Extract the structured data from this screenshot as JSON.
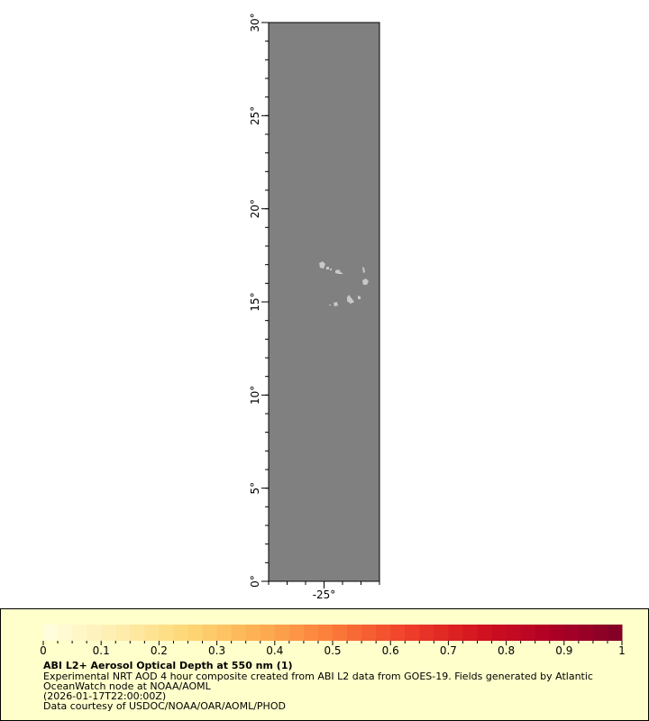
{
  "map": {
    "background_color": "#808080",
    "land_color": "#c8c8c8",
    "lat_range": [
      0,
      30
    ],
    "lon_range": [
      -28,
      -22
    ],
    "lat_tick_labels": [
      "0°",
      "5°",
      "10°",
      "15°",
      "20°",
      "25°",
      "30°"
    ],
    "lat_ticks": [
      0,
      5,
      10,
      15,
      20,
      25,
      30
    ],
    "lon_tick_labels": [
      "-25°"
    ],
    "lon_ticks": [
      -25
    ]
  },
  "legend": {
    "colorbar": {
      "range": [
        0,
        1
      ],
      "tick_labels": [
        "0",
        "0.1",
        "0.2",
        "0.3",
        "0.4",
        "0.5",
        "0.6",
        "0.7",
        "0.8",
        "0.9",
        "1"
      ],
      "color_stops": [
        "#ffffe0",
        "#feeeb0",
        "#fed776",
        "#fdae51",
        "#fb7c3a",
        "#f0412a",
        "#d3131f",
        "#b00026",
        "#800026"
      ]
    },
    "title": "ABI L2+ Aerosol Optical Depth at 550 nm (1)",
    "line1": "Experimental NRT AOD 4 hour composite created from ABI L2 data from GOES-19. Fields generated by Atlantic",
    "line2": "OceanWatch node at NOAA/AOML",
    "line3": "(2026-01-17T22:00:00Z)",
    "line4": "Data courtesy of USDOC/NOAA/OAR/AOML/PHOD"
  }
}
